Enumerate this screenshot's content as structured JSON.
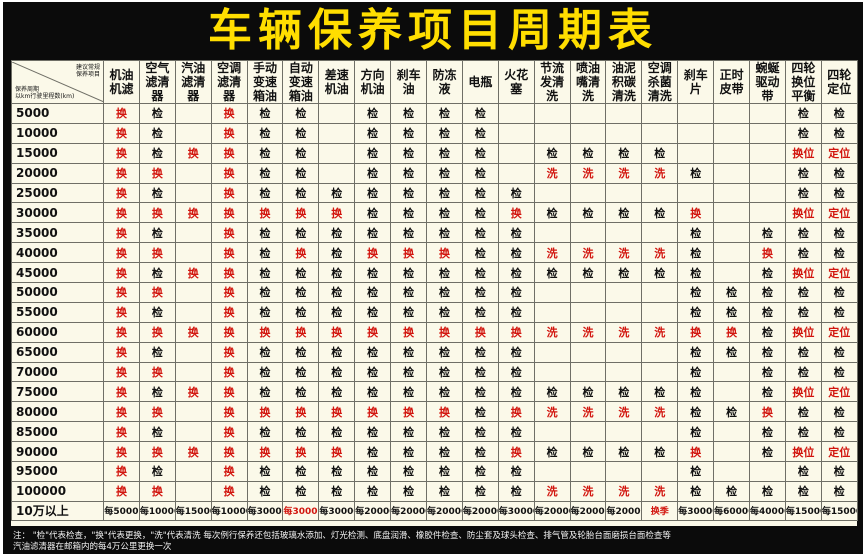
{
  "title": "车辆保养项目周期表",
  "corner": {
    "top_line1": "建议常规",
    "top_line2": "保养项目",
    "bottom_line1": "保养周期",
    "bottom_line2": "以km行驶里程数(km)"
  },
  "columns": [
    "机油机滤",
    "空气滤清器",
    "汽油滤清器",
    "空调滤清器",
    "手动变速箱油",
    "自动变速箱油",
    "差速机油",
    "方向机油",
    "刹车油",
    "防冻液",
    "电瓶",
    "火花塞",
    "节流发清洗",
    "喷油嘴清洗",
    "油泥积碳清洗",
    "空调杀菌清洗",
    "刹车片",
    "正时皮带",
    "蜿蜒驱动带",
    "四轮换位平衡",
    "四轮定位"
  ],
  "colors": {
    "replace": "#d2160f",
    "inspect": "#111111",
    "title": "#ffde00"
  },
  "rows": [
    {
      "mileage": "5000",
      "cells": [
        "换",
        "检",
        "",
        "换",
        "检",
        "检",
        "",
        "检",
        "检",
        "检",
        "检",
        "",
        "",
        "",
        "",
        "",
        "",
        "",
        "",
        "检",
        "检"
      ]
    },
    {
      "mileage": "10000",
      "cells": [
        "换",
        "检",
        "",
        "换",
        "检",
        "检",
        "",
        "检",
        "检",
        "检",
        "检",
        "",
        "",
        "",
        "",
        "",
        "",
        "",
        "",
        "检",
        "检"
      ]
    },
    {
      "mileage": "15000",
      "cells": [
        "换",
        "检",
        "换",
        "换",
        "检",
        "检",
        "",
        "检",
        "检",
        "检",
        "检",
        "",
        "检",
        "检",
        "检",
        "检",
        "",
        "",
        "",
        "换位",
        "定位"
      ]
    },
    {
      "mileage": "20000",
      "cells": [
        "换",
        "换",
        "",
        "换",
        "检",
        "检",
        "",
        "检",
        "检",
        "检",
        "检",
        "",
        "洗",
        "洗",
        "洗",
        "洗",
        "检",
        "",
        "",
        "检",
        "检"
      ]
    },
    {
      "mileage": "25000",
      "cells": [
        "换",
        "检",
        "",
        "换",
        "检",
        "检",
        "检",
        "检",
        "检",
        "检",
        "检",
        "检",
        "",
        "",
        "",
        "",
        "",
        "",
        "",
        "检",
        "检"
      ]
    },
    {
      "mileage": "30000",
      "cells": [
        "换",
        "换",
        "换",
        "换",
        "换",
        "换",
        "换",
        "检",
        "检",
        "检",
        "检",
        "换",
        "检",
        "检",
        "检",
        "检",
        "换",
        "",
        "",
        "换位",
        "定位"
      ]
    },
    {
      "mileage": "35000",
      "cells": [
        "换",
        "检",
        "",
        "换",
        "检",
        "检",
        "检",
        "检",
        "检",
        "检",
        "检",
        "检",
        "",
        "",
        "",
        "",
        "检",
        "",
        "检",
        "检",
        "检"
      ]
    },
    {
      "mileage": "40000",
      "cells": [
        "换",
        "换",
        "",
        "换",
        "检",
        "换",
        "检",
        "换",
        "换",
        "换",
        "检",
        "检",
        "洗",
        "洗",
        "洗",
        "洗",
        "检",
        "",
        "换",
        "检",
        "检"
      ]
    },
    {
      "mileage": "45000",
      "cells": [
        "换",
        "检",
        "换",
        "换",
        "检",
        "检",
        "检",
        "检",
        "检",
        "检",
        "检",
        "检",
        "检",
        "检",
        "检",
        "检",
        "检",
        "",
        "检",
        "换位",
        "定位"
      ]
    },
    {
      "mileage": "50000",
      "cells": [
        "换",
        "换",
        "",
        "换",
        "检",
        "检",
        "检",
        "检",
        "检",
        "检",
        "检",
        "检",
        "",
        "",
        "",
        "",
        "检",
        "检",
        "检",
        "检",
        "检"
      ]
    },
    {
      "mileage": "55000",
      "cells": [
        "换",
        "检",
        "",
        "换",
        "检",
        "检",
        "检",
        "检",
        "检",
        "检",
        "检",
        "检",
        "",
        "",
        "",
        "",
        "检",
        "检",
        "检",
        "检",
        "检"
      ]
    },
    {
      "mileage": "60000",
      "cells": [
        "换",
        "换",
        "换",
        "换",
        "换",
        "换",
        "换",
        "换",
        "换",
        "换",
        "换",
        "换",
        "洗",
        "洗",
        "洗",
        "洗",
        "换",
        "换",
        "检",
        "换位",
        "定位"
      ]
    },
    {
      "mileage": "65000",
      "cells": [
        "换",
        "检",
        "",
        "换",
        "检",
        "检",
        "检",
        "检",
        "检",
        "检",
        "检",
        "检",
        "",
        "",
        "",
        "",
        "检",
        "检",
        "检",
        "检",
        "检"
      ]
    },
    {
      "mileage": "70000",
      "cells": [
        "换",
        "换",
        "",
        "换",
        "检",
        "检",
        "检",
        "检",
        "检",
        "检",
        "检",
        "检",
        "",
        "",
        "",
        "",
        "检",
        "",
        "检",
        "检",
        "检"
      ]
    },
    {
      "mileage": "75000",
      "cells": [
        "换",
        "检",
        "换",
        "换",
        "检",
        "检",
        "检",
        "检",
        "检",
        "检",
        "检",
        "检",
        "检",
        "检",
        "检",
        "检",
        "检",
        "",
        "检",
        "换位",
        "定位"
      ]
    },
    {
      "mileage": "80000",
      "cells": [
        "换",
        "换",
        "",
        "换",
        "换",
        "换",
        "换",
        "换",
        "换",
        "换",
        "检",
        "换",
        "洗",
        "洗",
        "洗",
        "洗",
        "检",
        "检",
        "换",
        "检",
        "检"
      ]
    },
    {
      "mileage": "85000",
      "cells": [
        "换",
        "检",
        "",
        "换",
        "检",
        "检",
        "检",
        "检",
        "检",
        "检",
        "检",
        "检",
        "",
        "",
        "",
        "",
        "检",
        "",
        "检",
        "检",
        "检"
      ]
    },
    {
      "mileage": "90000",
      "cells": [
        "换",
        "换",
        "换",
        "换",
        "换",
        "换",
        "换",
        "检",
        "检",
        "检",
        "检",
        "换",
        "检",
        "检",
        "检",
        "检",
        "换",
        "",
        "检",
        "换位",
        "定位"
      ]
    },
    {
      "mileage": "95000",
      "cells": [
        "换",
        "检",
        "",
        "换",
        "检",
        "检",
        "检",
        "检",
        "检",
        "检",
        "检",
        "检",
        "",
        "",
        "",
        "",
        "检",
        "",
        "",
        "检",
        "检"
      ]
    },
    {
      "mileage": "100000",
      "cells": [
        "换",
        "换",
        "",
        "换",
        "检",
        "检",
        "检",
        "检",
        "检",
        "检",
        "检",
        "检",
        "洗",
        "洗",
        "洗",
        "洗",
        "检",
        "检",
        "检",
        "检",
        "检"
      ]
    },
    {
      "mileage": "10万以上",
      "cells": [
        "每5000",
        "每10000",
        "每15000",
        "每10000",
        "每30000",
        "每30000",
        "每30000",
        "每20000",
        "每20000",
        "每20000",
        "每20000",
        "每30000",
        "每20000",
        "每20000",
        "每20000",
        "换季",
        "每30000",
        "每60000",
        "每40000",
        "每15000",
        "每15000"
      ]
    }
  ],
  "note": {
    "line1": "注：  \"检\"代表检查，\"换\"代表更换，\"洗\"代表清洗    每次例行保养还包括玻璃水添加、灯光检测、底盘润滑、橡胶件检查、防尘套及球头检查、排气管及轮胎台面磨损台面检查等",
    "line2": "汽油滤清器在邮箱内的每4万公里更换一次"
  }
}
